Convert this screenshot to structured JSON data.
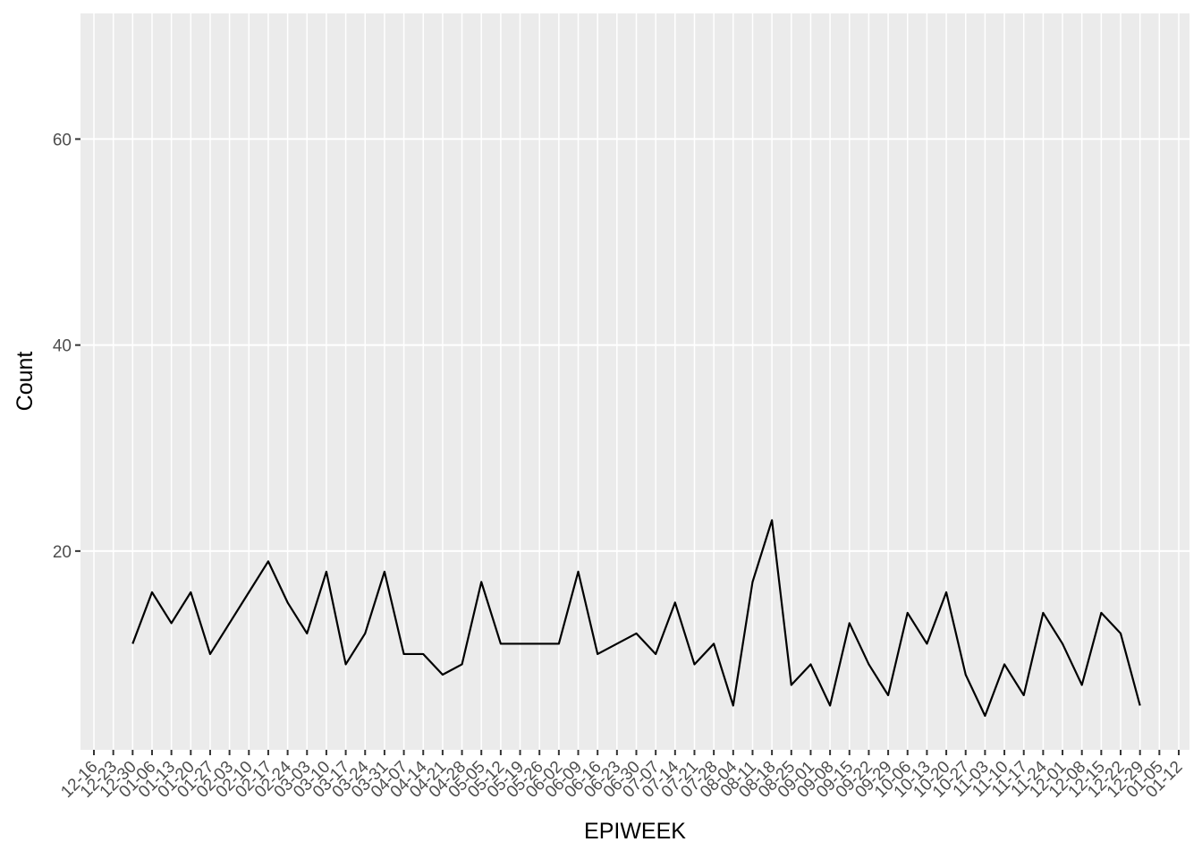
{
  "chart_data": {
    "type": "line",
    "x_label": "EPIWEEK",
    "y_label": "Count",
    "categories": [
      "12-16",
      "12-23",
      "12-30",
      "01-06",
      "01-13",
      "01-20",
      "01-27",
      "02-03",
      "02-10",
      "02-17",
      "02-24",
      "03-03",
      "03-10",
      "03-17",
      "03-24",
      "03-31",
      "04-07",
      "04-14",
      "04-21",
      "04-28",
      "05-05",
      "05-12",
      "05-19",
      "05-26",
      "06-02",
      "06-09",
      "06-16",
      "06-23",
      "06-30",
      "07-07",
      "07-14",
      "07-21",
      "07-28",
      "08-04",
      "08-11",
      "08-18",
      "08-25",
      "09-01",
      "09-08",
      "09-15",
      "09-22",
      "09-29",
      "10-06",
      "10-13",
      "10-20",
      "10-27",
      "11-03",
      "11-10",
      "11-17",
      "11-24",
      "12-01",
      "12-08",
      "12-15",
      "12-22",
      "12-29",
      "01-05",
      "01-12"
    ],
    "values": [
      null,
      null,
      11,
      16,
      13,
      16,
      10,
      13,
      16,
      19,
      15,
      12,
      18,
      9,
      12,
      18,
      10,
      10,
      8,
      9,
      17,
      11,
      11,
      11,
      11,
      18,
      10,
      11,
      12,
      10,
      15,
      9,
      11,
      5,
      17,
      23,
      7,
      9,
      5,
      13,
      9,
      6,
      14,
      11,
      16,
      8,
      4,
      9,
      6,
      14,
      11,
      7,
      14,
      12,
      5,
      null,
      null
    ],
    "color": "#000000",
    "ylim": [
      0.7,
      72.2
    ],
    "yticks": [
      20,
      40,
      60
    ],
    "grid": true
  }
}
